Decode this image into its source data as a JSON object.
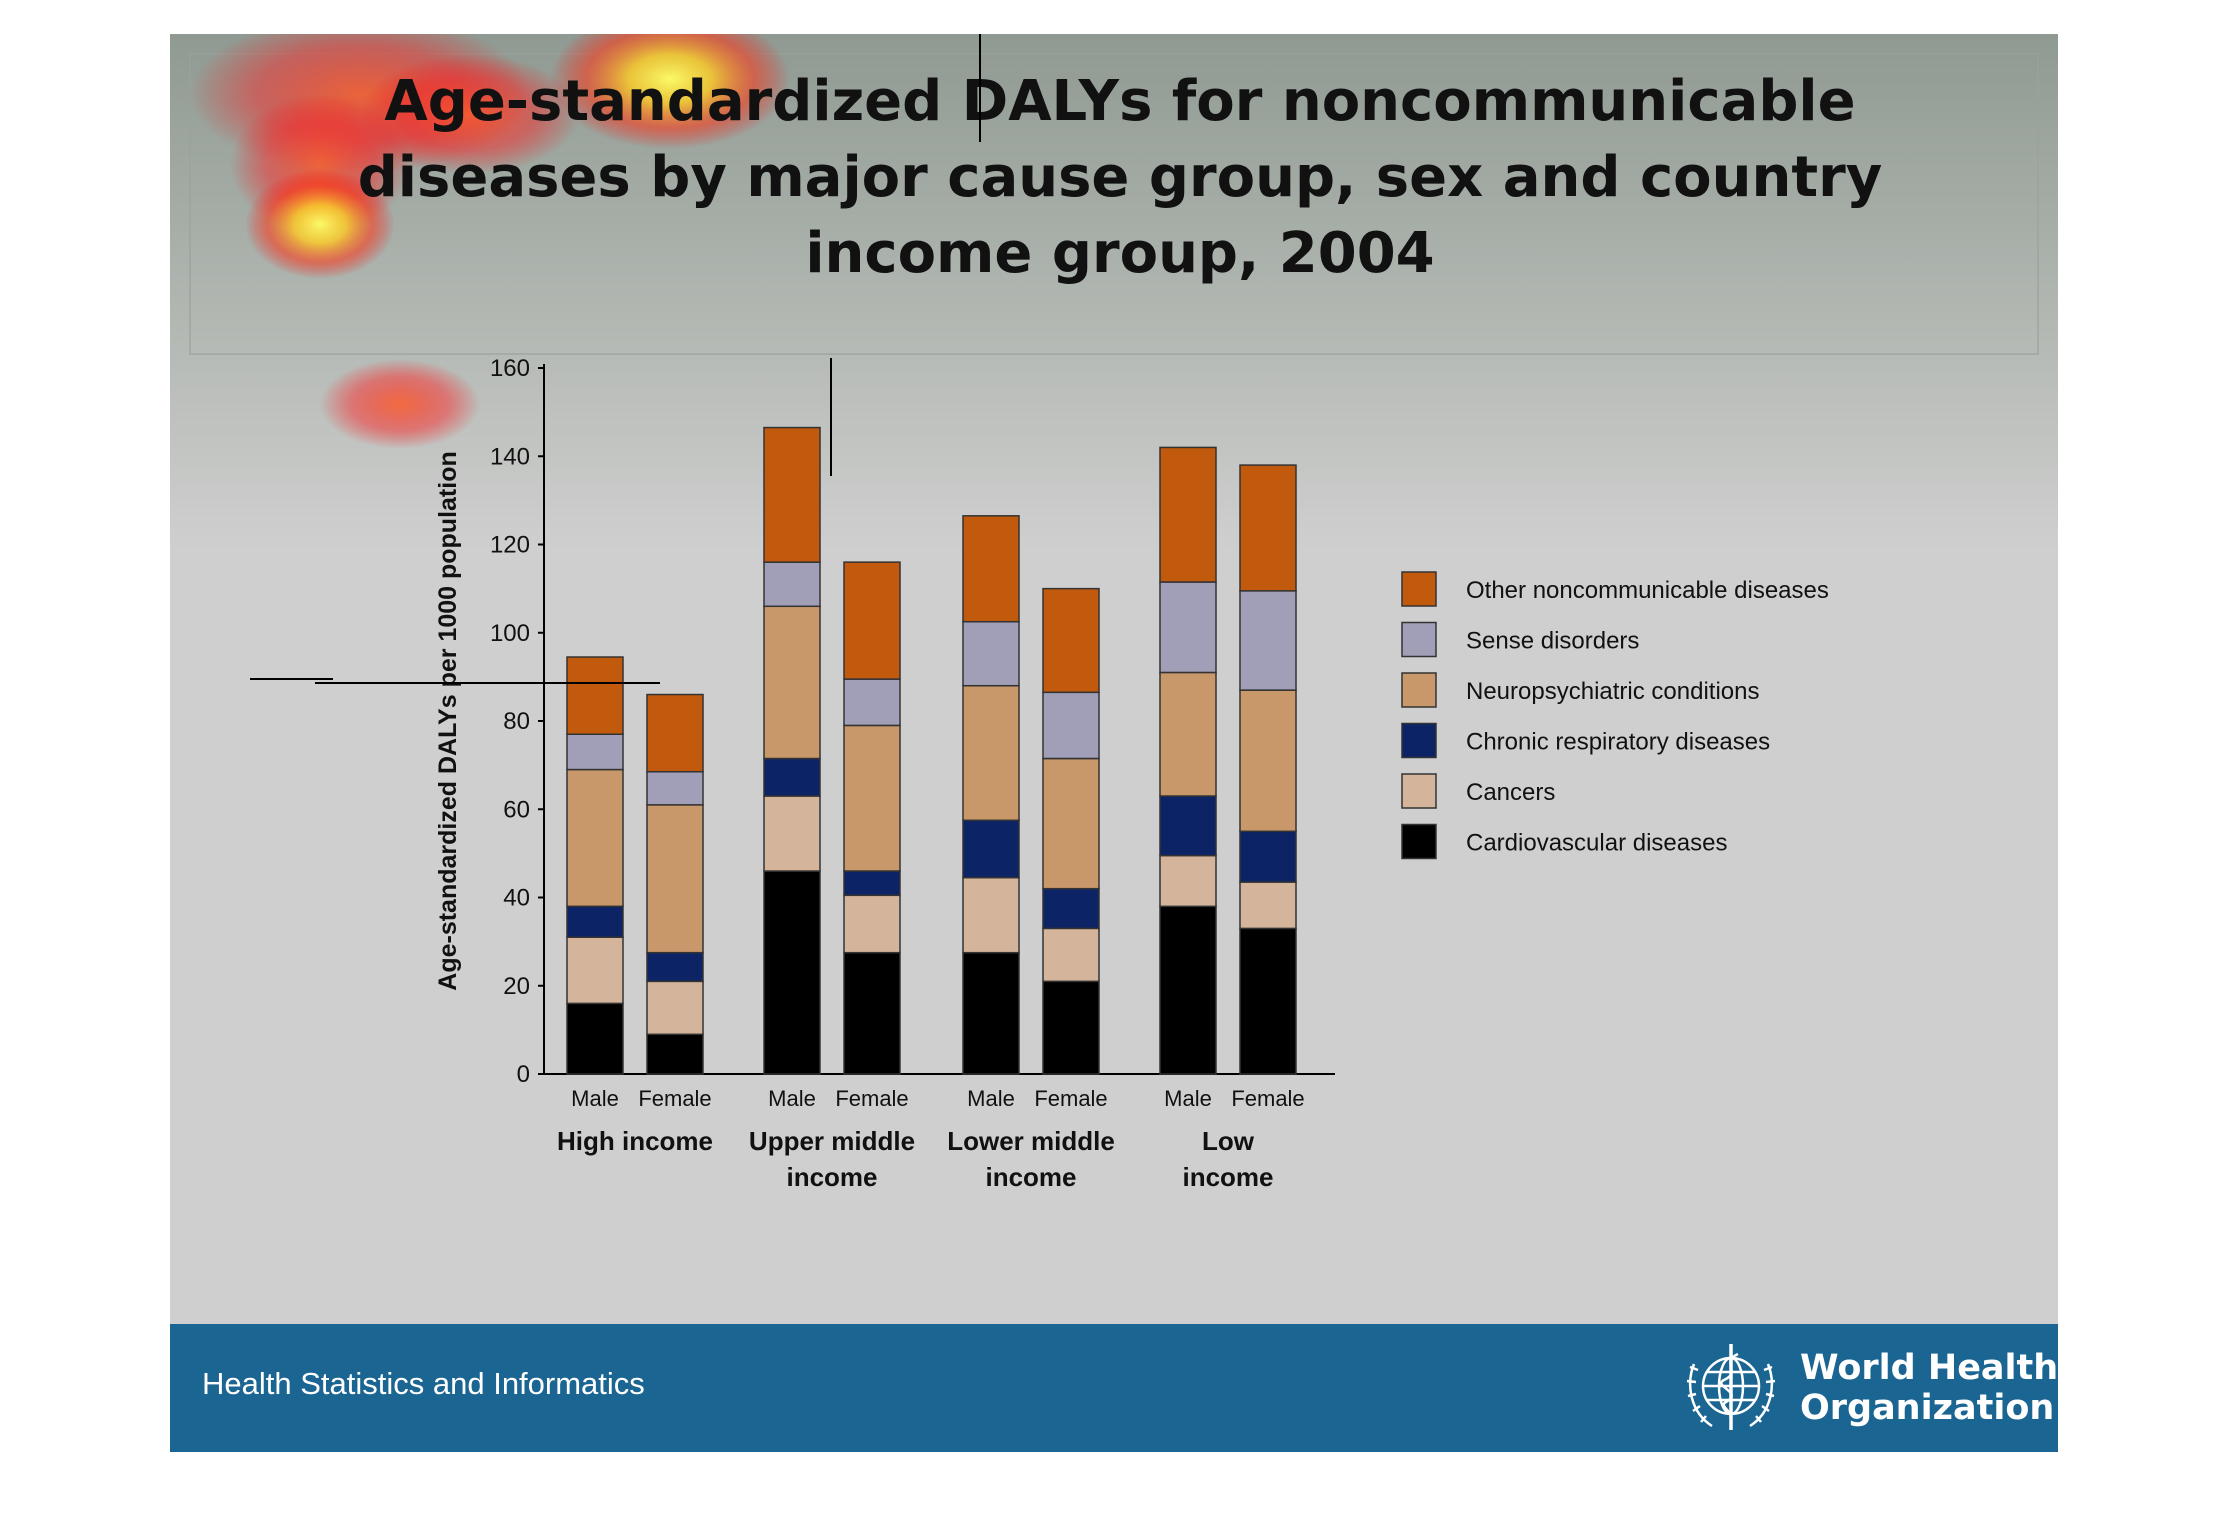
{
  "slide": {
    "title_lines": [
      "Age-standardized DALYs for noncommunicable",
      "diseases by major cause group,  sex and country",
      "income group, 2004"
    ],
    "footer_text": "Health Statistics and Informatics",
    "org_name_lines": [
      "World Health",
      "Organization"
    ],
    "colors": {
      "footer": "#1b6593",
      "background": "#cfcfcf"
    }
  },
  "chart_data": {
    "type": "bar",
    "stacked": true,
    "title": "Age-standardized DALYs for noncommunicable diseases by major cause group,  sex and country income group, 2004",
    "ylabel": "Age-standardized DALYs per 1000 population",
    "xlabel": "",
    "ylim": [
      0,
      160
    ],
    "yticks": [
      0,
      20,
      40,
      60,
      80,
      100,
      120,
      140,
      160
    ],
    "groups": [
      {
        "label": "High income",
        "bars": [
          "Male",
          "Female"
        ]
      },
      {
        "label": "Upper middle income",
        "bars": [
          "Male",
          "Female"
        ]
      },
      {
        "label": "Lower middle income",
        "bars": [
          "Male",
          "Female"
        ]
      },
      {
        "label": "Low income",
        "bars": [
          "Male",
          "Female"
        ]
      }
    ],
    "group_label_lines": [
      [
        "High income"
      ],
      [
        "Upper middle",
        "income"
      ],
      [
        "Lower middle",
        "income"
      ],
      [
        "Low",
        "income"
      ]
    ],
    "categories": [
      "High income Male",
      "High income Female",
      "Upper middle income Male",
      "Upper middle income Female",
      "Lower middle income Male",
      "Lower middle income Female",
      "Low income Male",
      "Low income Female"
    ],
    "series": [
      {
        "name": "Cardiovascular diseases",
        "color": "#000000",
        "values": [
          16,
          9,
          46,
          27.5,
          27.5,
          21,
          38,
          33
        ]
      },
      {
        "name": "Cancers",
        "color": "#d4b59b",
        "values": [
          15,
          12,
          17,
          13,
          17,
          12,
          11.5,
          10.5
        ]
      },
      {
        "name": "Chronic respiratory diseases",
        "color": "#0c2466",
        "values": [
          7,
          6.5,
          8.5,
          5.5,
          13,
          9,
          13.5,
          11.5
        ]
      },
      {
        "name": "Neuropsychiatric conditions",
        "color": "#c8976a",
        "values": [
          31,
          33.5,
          34.5,
          33,
          30.5,
          29.5,
          28,
          32
        ]
      },
      {
        "name": "Sense disorders",
        "color": "#a09fb7",
        "values": [
          8,
          7.5,
          10,
          10.5,
          14.5,
          15,
          20.5,
          22.5
        ]
      },
      {
        "name": "Other noncommunicable diseases",
        "color": "#c15a0c",
        "values": [
          17.5,
          17.5,
          30.5,
          26.5,
          24,
          23.5,
          30.5,
          28.5
        ]
      }
    ],
    "legend_order": [
      "Other noncommunicable diseases",
      "Sense disorders",
      "Neuropsychiatric conditions",
      "Chronic respiratory diseases",
      "Cancers",
      "Cardiovascular diseases"
    ],
    "legend_position": "right"
  }
}
